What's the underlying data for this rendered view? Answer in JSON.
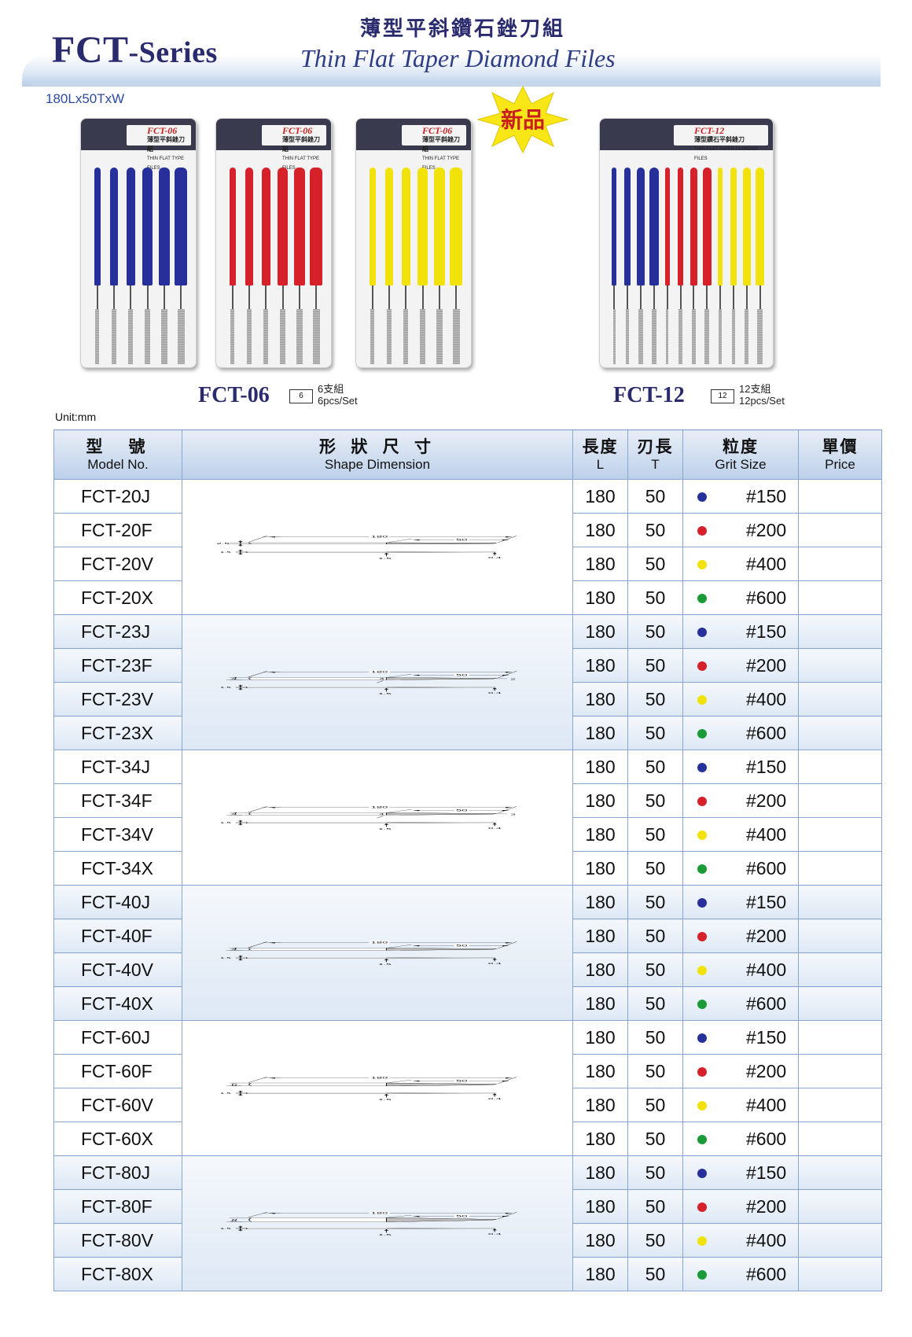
{
  "header": {
    "series_main": "FCT",
    "series_sub": "-Series",
    "title_cn": "薄型平斜鑽石銼刀組",
    "title_en": "Thin Flat Taper Diamond Files",
    "dimensions": "180Lx50TxW"
  },
  "new_badge": "新品",
  "colors": {
    "blue": "#27309a",
    "red": "#d6202a",
    "yellow": "#f2e20c",
    "green": "#1b9a3a",
    "header_navy": "#2a2a6e",
    "table_border": "#8aa6cc"
  },
  "packs": [
    {
      "label": "FCT-06",
      "sub": "薄型平斜銼刀組",
      "sub_en": "THIN FLAT TYPE FILES"
    },
    {
      "label": "FCT-06",
      "sub": "薄型平斜銼刀組",
      "sub_en": "THIN FLAT TYPE FILES"
    },
    {
      "label": "FCT-06",
      "sub": "薄型平斜銼刀組",
      "sub_en": "THIN FLAT TYPE FILES"
    },
    {
      "label": "FCT-12",
      "sub": "薄型鑽石平斜銼刀",
      "sub_en": "THIN FLAT TAPER DIAMOND FILES"
    }
  ],
  "sets": [
    {
      "model": "FCT-06",
      "box_count": "6",
      "qty_cn": "6支組",
      "qty_en": "6pcs/Set"
    },
    {
      "model": "FCT-12",
      "box_count": "12",
      "qty_cn": "12支組",
      "qty_en": "12pcs/Set"
    }
  ],
  "unit": "Unit:mm",
  "table": {
    "headers": {
      "model_cn": "型　號",
      "model_en": "Model No.",
      "shape_cn": "形 狀 尺 寸",
      "shape_en": "Shape Dimension",
      "length_cn": "長度",
      "length_en": "L",
      "blade_cn": "刃長",
      "blade_en": "T",
      "grit_cn": "粒度",
      "grit_en": "Grit Size",
      "price_cn": "單價",
      "price_en": "Price"
    },
    "groups": [
      {
        "width_label": "2.5",
        "tip_label": "",
        "mid_label": "",
        "rows": [
          {
            "model": "FCT-20J",
            "L": "180",
            "T": "50",
            "color": "#27309a",
            "grit": "#150"
          },
          {
            "model": "FCT-20F",
            "L": "180",
            "T": "50",
            "color": "#d6202a",
            "grit": "#200"
          },
          {
            "model": "FCT-20V",
            "L": "180",
            "T": "50",
            "color": "#f2e20c",
            "grit": "#400"
          },
          {
            "model": "FCT-20X",
            "L": "180",
            "T": "50",
            "color": "#1b9a3a",
            "grit": "#600"
          }
        ]
      },
      {
        "width_label": "4",
        "tip_label": "2",
        "mid_label": "3",
        "rows": [
          {
            "model": "FCT-23J",
            "L": "180",
            "T": "50",
            "color": "#27309a",
            "grit": "#150"
          },
          {
            "model": "FCT-23F",
            "L": "180",
            "T": "50",
            "color": "#d6202a",
            "grit": "#200"
          },
          {
            "model": "FCT-23V",
            "L": "180",
            "T": "50",
            "color": "#f2e20c",
            "grit": "#400"
          },
          {
            "model": "FCT-23X",
            "L": "180",
            "T": "50",
            "color": "#1b9a3a",
            "grit": "#600"
          }
        ]
      },
      {
        "width_label": "4",
        "tip_label": "3",
        "mid_label": "4",
        "rows": [
          {
            "model": "FCT-34J",
            "L": "180",
            "T": "50",
            "color": "#27309a",
            "grit": "#150"
          },
          {
            "model": "FCT-34F",
            "L": "180",
            "T": "50",
            "color": "#d6202a",
            "grit": "#200"
          },
          {
            "model": "FCT-34V",
            "L": "180",
            "T": "50",
            "color": "#f2e20c",
            "grit": "#400"
          },
          {
            "model": "FCT-34X",
            "L": "180",
            "T": "50",
            "color": "#1b9a3a",
            "grit": "#600"
          }
        ]
      },
      {
        "width_label": "4",
        "tip_label": "",
        "mid_label": "",
        "rows": [
          {
            "model": "FCT-40J",
            "L": "180",
            "T": "50",
            "color": "#27309a",
            "grit": "#150"
          },
          {
            "model": "FCT-40F",
            "L": "180",
            "T": "50",
            "color": "#d6202a",
            "grit": "#200"
          },
          {
            "model": "FCT-40V",
            "L": "180",
            "T": "50",
            "color": "#f2e20c",
            "grit": "#400"
          },
          {
            "model": "FCT-40X",
            "L": "180",
            "T": "50",
            "color": "#1b9a3a",
            "grit": "#600"
          }
        ]
      },
      {
        "width_label": "6",
        "tip_label": "",
        "mid_label": "",
        "rows": [
          {
            "model": "FCT-60J",
            "L": "180",
            "T": "50",
            "color": "#27309a",
            "grit": "#150"
          },
          {
            "model": "FCT-60F",
            "L": "180",
            "T": "50",
            "color": "#d6202a",
            "grit": "#200"
          },
          {
            "model": "FCT-60V",
            "L": "180",
            "T": "50",
            "color": "#f2e20c",
            "grit": "#400"
          },
          {
            "model": "FCT-60X",
            "L": "180",
            "T": "50",
            "color": "#1b9a3a",
            "grit": "#600"
          }
        ]
      },
      {
        "width_label": "8",
        "tip_label": "",
        "mid_label": "",
        "rows": [
          {
            "model": "FCT-80J",
            "L": "180",
            "T": "50",
            "color": "#27309a",
            "grit": "#150"
          },
          {
            "model": "FCT-80F",
            "L": "180",
            "T": "50",
            "color": "#d6202a",
            "grit": "#200"
          },
          {
            "model": "FCT-80V",
            "L": "180",
            "T": "50",
            "color": "#f2e20c",
            "grit": "#400"
          },
          {
            "model": "FCT-80X",
            "L": "180",
            "T": "50",
            "color": "#1b9a3a",
            "grit": "#600"
          }
        ]
      }
    ],
    "drawing_labels": {
      "length": "180",
      "blade": "50",
      "thickness": "1.5",
      "thickness_mid": "1.5",
      "thickness_tip": "0.4"
    }
  }
}
